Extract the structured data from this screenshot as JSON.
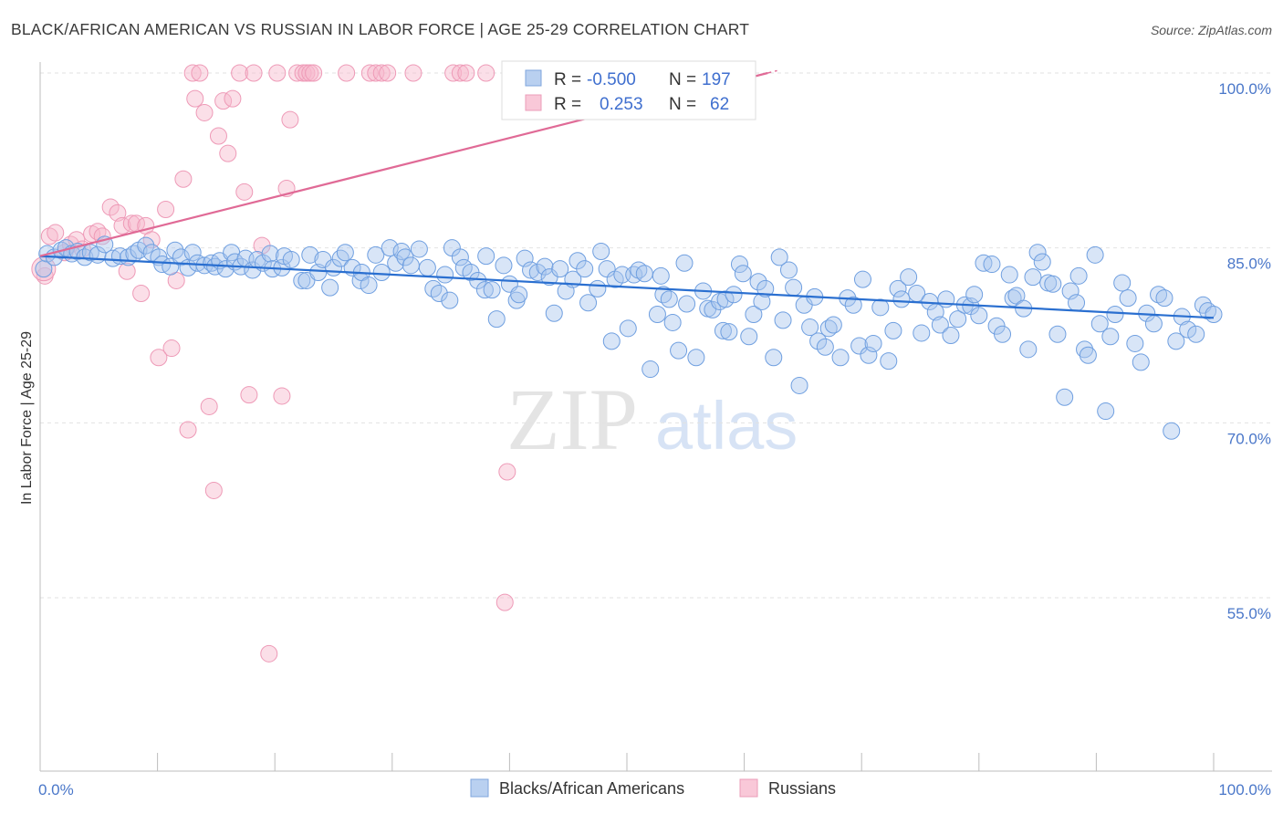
{
  "title": "BLACK/AFRICAN AMERICAN VS RUSSIAN IN LABOR FORCE | AGE 25-29 CORRELATION CHART",
  "source": "Source: ZipAtlas.com",
  "watermark": {
    "zip": "ZIP",
    "atlas": "atlas"
  },
  "colors": {
    "blue": "#6f9fe0",
    "blue_line": "#2a6fd0",
    "pink": "#f4a6bf",
    "pink_line": "#e06a96",
    "tick_text": "#4a77c9"
  },
  "chart_data": {
    "type": "scatter",
    "xlabel": "",
    "ylabel": "In Labor Force | Age 25-29",
    "xlim": [
      0,
      100
    ],
    "ylim": [
      41,
      101
    ],
    "x_tick_labels": [
      {
        "value": 0,
        "label": "0.0%"
      },
      {
        "value": 100,
        "label": "100.0%"
      }
    ],
    "y_ticks": [
      {
        "value": 100,
        "label": "100.0%"
      },
      {
        "value": 85,
        "label": "85.0%"
      },
      {
        "value": 70,
        "label": "70.0%"
      },
      {
        "value": 55,
        "label": "55.0%"
      }
    ],
    "legend": {
      "rows": [
        {
          "r_label": "R =",
          "r_value": "-0.500",
          "n_label": "N =",
          "n_value": "197"
        },
        {
          "r_label": "R =",
          "r_value": "0.253",
          "n_label": "N =",
          "n_value": "62"
        }
      ]
    },
    "series": [
      {
        "name": "Blacks/African Americans",
        "color": "#6f9fe0",
        "trend": {
          "x": [
            0,
            100
          ],
          "y": [
            84.3,
            79.0
          ]
        },
        "points": [
          [
            0.3,
            83.2
          ],
          [
            0.6,
            84.5
          ],
          [
            1.2,
            84.2
          ],
          [
            1.8,
            84.8
          ],
          [
            2.2,
            85.0
          ],
          [
            2.7,
            84.5
          ],
          [
            3.2,
            84.7
          ],
          [
            3.8,
            84.2
          ],
          [
            4.3,
            84.6
          ],
          [
            4.9,
            84.4
          ],
          [
            5.5,
            85.3
          ],
          [
            6.2,
            84.1
          ],
          [
            6.8,
            84.3
          ],
          [
            7.5,
            84.2
          ],
          [
            8.0,
            84.5
          ],
          [
            8.4,
            84.8
          ],
          [
            9.0,
            85.2
          ],
          [
            9.5,
            84.6
          ],
          [
            10.1,
            84.2
          ],
          [
            10.4,
            83.6
          ],
          [
            11.1,
            83.4
          ],
          [
            11.5,
            84.8
          ],
          [
            12.0,
            84.2
          ],
          [
            12.6,
            83.3
          ],
          [
            13.0,
            84.6
          ],
          [
            13.4,
            83.7
          ],
          [
            14.0,
            83.5
          ],
          [
            14.6,
            83.7
          ],
          [
            14.9,
            83.4
          ],
          [
            15.3,
            83.9
          ],
          [
            15.8,
            83.2
          ],
          [
            16.3,
            84.6
          ],
          [
            16.6,
            83.8
          ],
          [
            17.1,
            83.4
          ],
          [
            17.5,
            84.1
          ],
          [
            18.1,
            83.1
          ],
          [
            18.5,
            84.0
          ],
          [
            19.0,
            83.7
          ],
          [
            19.6,
            84.5
          ],
          [
            19.8,
            83.2
          ],
          [
            20.6,
            83.3
          ],
          [
            20.8,
            84.3
          ],
          [
            21.4,
            84.0
          ],
          [
            22.3,
            82.2
          ],
          [
            22.7,
            82.2
          ],
          [
            23.0,
            84.4
          ],
          [
            23.7,
            82.9
          ],
          [
            24.1,
            84.0
          ],
          [
            24.7,
            81.6
          ],
          [
            25.0,
            83.3
          ],
          [
            25.6,
            84.1
          ],
          [
            26.0,
            84.6
          ],
          [
            26.6,
            83.3
          ],
          [
            27.3,
            82.2
          ],
          [
            27.4,
            82.9
          ],
          [
            28.0,
            81.8
          ],
          [
            28.6,
            84.4
          ],
          [
            29.1,
            82.9
          ],
          [
            29.8,
            85.0
          ],
          [
            30.3,
            83.7
          ],
          [
            30.8,
            84.7
          ],
          [
            31.1,
            84.2
          ],
          [
            31.6,
            83.5
          ],
          [
            32.3,
            84.9
          ],
          [
            33.0,
            83.3
          ],
          [
            33.5,
            81.5
          ],
          [
            34.0,
            81.1
          ],
          [
            34.5,
            82.7
          ],
          [
            34.9,
            80.5
          ],
          [
            35.1,
            85.0
          ],
          [
            35.8,
            84.2
          ],
          [
            36.1,
            83.3
          ],
          [
            36.7,
            82.9
          ],
          [
            37.3,
            82.2
          ],
          [
            37.9,
            81.4
          ],
          [
            38.0,
            84.3
          ],
          [
            38.5,
            81.4
          ],
          [
            38.9,
            78.9
          ],
          [
            39.5,
            83.5
          ],
          [
            40.0,
            81.9
          ],
          [
            40.6,
            80.5
          ],
          [
            40.8,
            81.0
          ],
          [
            41.3,
            84.1
          ],
          [
            41.8,
            83.1
          ],
          [
            42.4,
            82.9
          ],
          [
            43.0,
            83.4
          ],
          [
            43.4,
            82.5
          ],
          [
            43.8,
            79.4
          ],
          [
            44.3,
            83.2
          ],
          [
            44.8,
            81.3
          ],
          [
            45.4,
            82.3
          ],
          [
            45.8,
            83.9
          ],
          [
            46.4,
            83.2
          ],
          [
            46.7,
            80.3
          ],
          [
            47.5,
            81.5
          ],
          [
            47.8,
            84.7
          ],
          [
            48.3,
            83.2
          ],
          [
            48.7,
            77.0
          ],
          [
            49.0,
            82.3
          ],
          [
            49.6,
            82.7
          ],
          [
            50.1,
            78.1
          ],
          [
            50.6,
            82.7
          ],
          [
            51.0,
            83.1
          ],
          [
            51.5,
            82.8
          ],
          [
            52.0,
            74.6
          ],
          [
            52.6,
            79.3
          ],
          [
            52.9,
            82.6
          ],
          [
            53.1,
            81.0
          ],
          [
            53.6,
            80.6
          ],
          [
            53.9,
            78.6
          ],
          [
            54.4,
            76.2
          ],
          [
            54.9,
            83.7
          ],
          [
            55.1,
            80.2
          ],
          [
            55.9,
            75.6
          ],
          [
            56.5,
            81.3
          ],
          [
            56.9,
            79.8
          ],
          [
            57.3,
            79.7
          ],
          [
            57.9,
            80.4
          ],
          [
            58.2,
            77.9
          ],
          [
            58.4,
            80.6
          ],
          [
            58.7,
            77.8
          ],
          [
            59.1,
            81.0
          ],
          [
            59.6,
            83.6
          ],
          [
            59.9,
            82.8
          ],
          [
            60.4,
            77.4
          ],
          [
            60.8,
            79.3
          ],
          [
            61.2,
            82.1
          ],
          [
            61.5,
            80.4
          ],
          [
            61.8,
            81.5
          ],
          [
            62.5,
            75.6
          ],
          [
            63.0,
            84.2
          ],
          [
            63.3,
            78.8
          ],
          [
            63.8,
            83.1
          ],
          [
            64.2,
            81.6
          ],
          [
            64.7,
            73.2
          ],
          [
            65.1,
            80.1
          ],
          [
            65.6,
            78.2
          ],
          [
            66.0,
            80.8
          ],
          [
            66.3,
            77.0
          ],
          [
            66.9,
            76.5
          ],
          [
            67.2,
            78.1
          ],
          [
            67.6,
            78.4
          ],
          [
            68.2,
            75.6
          ],
          [
            68.8,
            80.7
          ],
          [
            69.3,
            80.1
          ],
          [
            69.8,
            76.6
          ],
          [
            70.1,
            82.3
          ],
          [
            70.6,
            75.8
          ],
          [
            71.0,
            76.8
          ],
          [
            71.6,
            79.9
          ],
          [
            72.3,
            75.3
          ],
          [
            72.7,
            77.9
          ],
          [
            73.1,
            81.5
          ],
          [
            73.4,
            80.6
          ],
          [
            74.0,
            82.5
          ],
          [
            74.7,
            81.1
          ],
          [
            75.1,
            77.7
          ],
          [
            75.8,
            80.4
          ],
          [
            76.3,
            79.5
          ],
          [
            76.7,
            78.4
          ],
          [
            77.2,
            80.6
          ],
          [
            77.6,
            77.5
          ],
          [
            78.2,
            78.9
          ],
          [
            78.8,
            80.1
          ],
          [
            79.3,
            80.0
          ],
          [
            79.6,
            81.0
          ],
          [
            80.0,
            79.2
          ],
          [
            80.4,
            83.7
          ],
          [
            81.1,
            83.6
          ],
          [
            81.5,
            78.3
          ],
          [
            82.0,
            77.6
          ],
          [
            82.6,
            82.7
          ],
          [
            82.9,
            80.7
          ],
          [
            83.2,
            80.9
          ],
          [
            83.8,
            79.8
          ],
          [
            84.2,
            76.3
          ],
          [
            84.6,
            82.5
          ],
          [
            85.0,
            84.6
          ],
          [
            85.4,
            83.8
          ],
          [
            85.9,
            82.0
          ],
          [
            86.3,
            81.9
          ],
          [
            86.7,
            77.6
          ],
          [
            87.3,
            72.2
          ],
          [
            87.8,
            81.3
          ],
          [
            88.3,
            80.3
          ],
          [
            88.5,
            82.6
          ],
          [
            89.0,
            76.3
          ],
          [
            89.3,
            75.8
          ],
          [
            89.9,
            84.4
          ],
          [
            90.3,
            78.5
          ],
          [
            90.8,
            71.0
          ],
          [
            91.2,
            77.4
          ],
          [
            91.6,
            79.3
          ],
          [
            92.2,
            82.0
          ],
          [
            92.7,
            80.7
          ],
          [
            93.3,
            76.8
          ],
          [
            93.8,
            75.2
          ],
          [
            94.3,
            79.4
          ],
          [
            94.9,
            78.5
          ],
          [
            95.3,
            81.0
          ],
          [
            95.8,
            80.7
          ],
          [
            96.4,
            69.3
          ],
          [
            96.8,
            77.0
          ],
          [
            97.3,
            79.1
          ],
          [
            97.8,
            78.0
          ],
          [
            98.5,
            77.6
          ],
          [
            99.1,
            80.1
          ],
          [
            99.5,
            79.6
          ],
          [
            100.0,
            79.3
          ]
        ]
      },
      {
        "name": "Russians",
        "color": "#f4a6bf",
        "trend": {
          "x": [
            0,
            62
          ],
          "y": [
            84.3,
            100.0
          ]
        },
        "points": [
          [
            0.4,
            82.6
          ],
          [
            0.8,
            86.0
          ],
          [
            1.3,
            86.3
          ],
          [
            2.1,
            84.6
          ],
          [
            2.6,
            85.3
          ],
          [
            3.1,
            85.7
          ],
          [
            3.6,
            84.9
          ],
          [
            4.4,
            86.2
          ],
          [
            4.9,
            86.4
          ],
          [
            5.3,
            86.0
          ],
          [
            6.0,
            88.5
          ],
          [
            6.6,
            88.0
          ],
          [
            7.0,
            86.9
          ],
          [
            7.4,
            83.0
          ],
          [
            7.8,
            87.1
          ],
          [
            8.2,
            87.1
          ],
          [
            8.6,
            81.1
          ],
          [
            9.0,
            86.9
          ],
          [
            9.5,
            85.7
          ],
          [
            10.1,
            75.6
          ],
          [
            10.7,
            88.3
          ],
          [
            11.2,
            76.4
          ],
          [
            11.6,
            82.2
          ],
          [
            12.2,
            90.9
          ],
          [
            12.6,
            69.4
          ],
          [
            13.0,
            100.0
          ],
          [
            13.2,
            97.8
          ],
          [
            13.6,
            100.0
          ],
          [
            14.0,
            96.6
          ],
          [
            14.4,
            71.4
          ],
          [
            14.8,
            64.2
          ],
          [
            15.2,
            94.6
          ],
          [
            15.6,
            97.6
          ],
          [
            16.0,
            93.1
          ],
          [
            16.4,
            97.8
          ],
          [
            17.0,
            100.0
          ],
          [
            17.4,
            89.8
          ],
          [
            17.8,
            72.4
          ],
          [
            18.2,
            100.0
          ],
          [
            18.9,
            85.2
          ],
          [
            19.5,
            50.2
          ],
          [
            20.2,
            100.0
          ],
          [
            20.6,
            72.3
          ],
          [
            21.0,
            90.1
          ],
          [
            21.3,
            96.0
          ],
          [
            21.9,
            100.0
          ],
          [
            22.4,
            100.0
          ],
          [
            22.7,
            100.0
          ],
          [
            23.0,
            100.0
          ],
          [
            23.3,
            100.0
          ],
          [
            26.1,
            100.0
          ],
          [
            28.1,
            100.0
          ],
          [
            28.6,
            100.0
          ],
          [
            29.1,
            100.0
          ],
          [
            29.6,
            100.0
          ],
          [
            31.8,
            100.0
          ],
          [
            35.2,
            100.0
          ],
          [
            35.8,
            100.0
          ],
          [
            36.3,
            100.0
          ],
          [
            38.0,
            100.0
          ],
          [
            39.6,
            54.6
          ],
          [
            39.8,
            65.8
          ]
        ]
      }
    ]
  }
}
